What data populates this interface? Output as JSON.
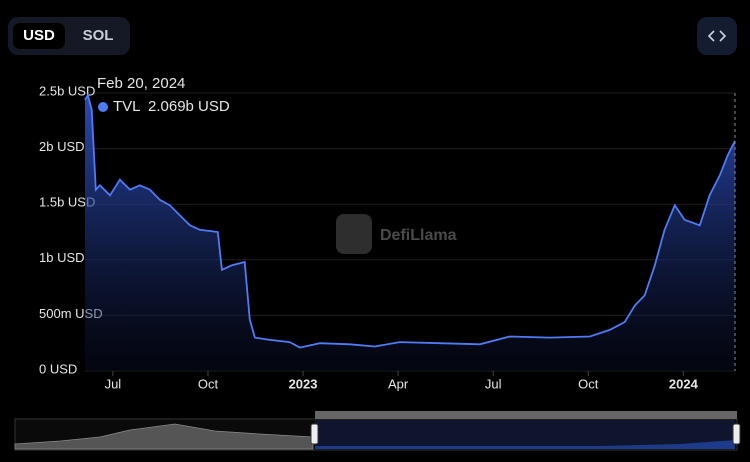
{
  "ui": {
    "currency_options": [
      "USD",
      "SOL"
    ],
    "watermark": "DefiLlama"
  },
  "chart_data": {
    "type": "area",
    "x": [
      -0.88,
      -0.79,
      -0.67,
      -0.54,
      -0.41,
      -0.09,
      0.22,
      0.54,
      0.85,
      1.17,
      1.48,
      1.8,
      2.11,
      2.43,
      2.74,
      3.31,
      3.44,
      3.75,
      4.16,
      4.32,
      4.48,
      4.95,
      5.58,
      5.9,
      6.53,
      7.48,
      8.26,
      9.05,
      10.32,
      11.58,
      12.52,
      13.79,
      15.05,
      15.68,
      16.15,
      16.47,
      16.78,
      17.1,
      17.41,
      17.73,
      18.04,
      18.52,
      18.83,
      19.15,
      19.4,
      19.63
    ],
    "series": [
      {
        "name": "TVL",
        "color": "#4f7cf5",
        "values": [
          2440000000,
          2480000000,
          2350000000,
          1630000000,
          1670000000,
          1580000000,
          1720000000,
          1630000000,
          1670000000,
          1630000000,
          1540000000,
          1490000000,
          1400000000,
          1310000000,
          1270000000,
          1250000000,
          910000000,
          950000000,
          980000000,
          460000000,
          300000000,
          280000000,
          260000000,
          210000000,
          250000000,
          240000000,
          220000000,
          260000000,
          250000000,
          240000000,
          310000000,
          300000000,
          310000000,
          370000000,
          440000000,
          590000000,
          680000000,
          950000000,
          1270000000,
          1490000000,
          1360000000,
          1310000000,
          1580000000,
          1760000000,
          1940000000,
          2069000000
        ]
      }
    ],
    "xlim": [
      -0.88,
      19.63
    ],
    "xticks": [
      {
        "value": 0,
        "label": "Jul"
      },
      {
        "value": 3,
        "label": "Oct"
      },
      {
        "value": 6,
        "label": "2023"
      },
      {
        "value": 9,
        "label": "Apr"
      },
      {
        "value": 12,
        "label": "Jul"
      },
      {
        "value": 15,
        "label": "Oct"
      },
      {
        "value": 18,
        "label": "2024"
      }
    ],
    "ylim": [
      0,
      2500000000
    ],
    "yticks": [
      {
        "value": 0,
        "label": "0 USD"
      },
      {
        "value": 500000000,
        "label": "500m USD"
      },
      {
        "value": 1000000000,
        "label": "1b USD"
      },
      {
        "value": 1500000000,
        "label": "1.5b USD"
      },
      {
        "value": 2000000000,
        "label": "2b USD"
      },
      {
        "value": 2500000000,
        "label": "2.5b USD"
      }
    ],
    "grid": true,
    "tooltip": {
      "date": "Feb 20, 2024",
      "value": "2.069b USD"
    }
  }
}
